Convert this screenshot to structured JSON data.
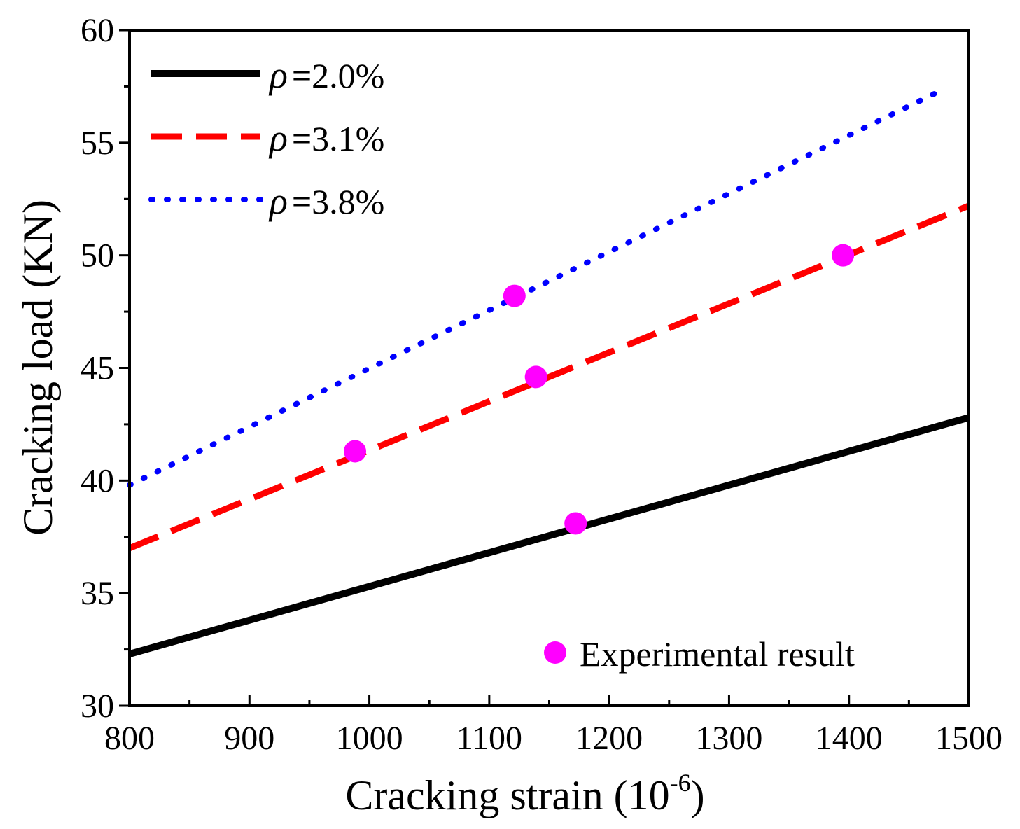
{
  "chart_data": {
    "type": "line",
    "xlabel": "Cracking strain (10",
    "xlabel_exp": "-6",
    "xlabel_close": ")",
    "ylabel": "Cracking load (KN)",
    "xlim": [
      800,
      1500
    ],
    "ylim": [
      30,
      60
    ],
    "x_major_ticks": [
      800,
      900,
      1000,
      1100,
      1200,
      1300,
      1400,
      1500
    ],
    "x_minor_ticks": [
      850,
      950,
      1050,
      1150,
      1250,
      1350,
      1450
    ],
    "y_major_ticks": [
      30,
      35,
      40,
      45,
      50,
      55,
      60
    ],
    "y_minor_ticks": [
      32.5,
      37.5,
      42.5,
      47.5,
      52.5,
      57.5
    ],
    "x_tick_labels": [
      "800",
      "900",
      "1000",
      "1100",
      "1200",
      "1300",
      "1400",
      "1500"
    ],
    "y_tick_labels": [
      "30",
      "35",
      "40",
      "45",
      "50",
      "55",
      "60"
    ],
    "grid": false,
    "series": [
      {
        "name": "ρ=2.0%",
        "rho": "ρ",
        "label": "=2.0%",
        "style": "solid",
        "color": "#000000",
        "x": [
          800,
          1500
        ],
        "values": [
          32.3,
          42.8
        ]
      },
      {
        "name": "ρ=3.1%",
        "rho": "ρ",
        "label": "=3.1%",
        "style": "dashed",
        "color": "#ff0000",
        "x": [
          800,
          1500
        ],
        "values": [
          37.0,
          52.2
        ]
      },
      {
        "name": "ρ=3.8%",
        "rho": "ρ",
        "label": "=3.8%",
        "style": "dotted",
        "color": "#0000ff",
        "x": [
          800,
          1480
        ],
        "values": [
          39.8,
          57.4
        ]
      }
    ],
    "scatter": {
      "name": "Experimental result",
      "color": "#ff00ff",
      "points": [
        {
          "x": 988,
          "y": 41.3
        },
        {
          "x": 1121,
          "y": 48.2
        },
        {
          "x": 1139,
          "y": 44.6
        },
        {
          "x": 1172,
          "y": 38.1
        },
        {
          "x": 1395,
          "y": 50.0
        }
      ]
    },
    "legend_position": "top-left",
    "scatter_legend_position": "bottom-right"
  }
}
